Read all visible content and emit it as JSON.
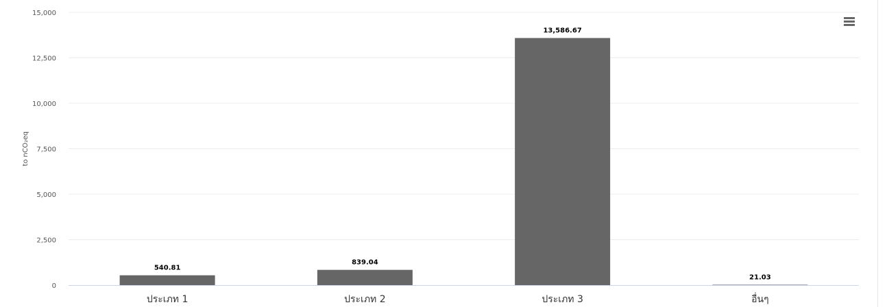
{
  "chart_data": {
    "type": "bar",
    "title": "",
    "xlabel": "",
    "ylabel": "to nCO₂eq",
    "categories": [
      "ประเภท 1",
      "ประเภท 2",
      "ประเภท 3",
      "อื่นๆ"
    ],
    "values": [
      540.81,
      839.04,
      13586.67,
      21.03
    ],
    "data_labels": [
      "540.81",
      "839.04",
      "13,586.67",
      "21.03"
    ],
    "ylim": [
      0,
      15000
    ],
    "yticks": [
      0,
      2500,
      5000,
      7500,
      10000,
      12500,
      15000
    ],
    "ytick_labels": [
      "0",
      "2,500",
      "5,000",
      "7,500",
      "10,000",
      "12,500",
      "15,000"
    ],
    "bar_color": "#666666",
    "grid": true,
    "legend": "none"
  },
  "toolbar": {
    "menu_icon": "hamburger-menu-icon"
  }
}
